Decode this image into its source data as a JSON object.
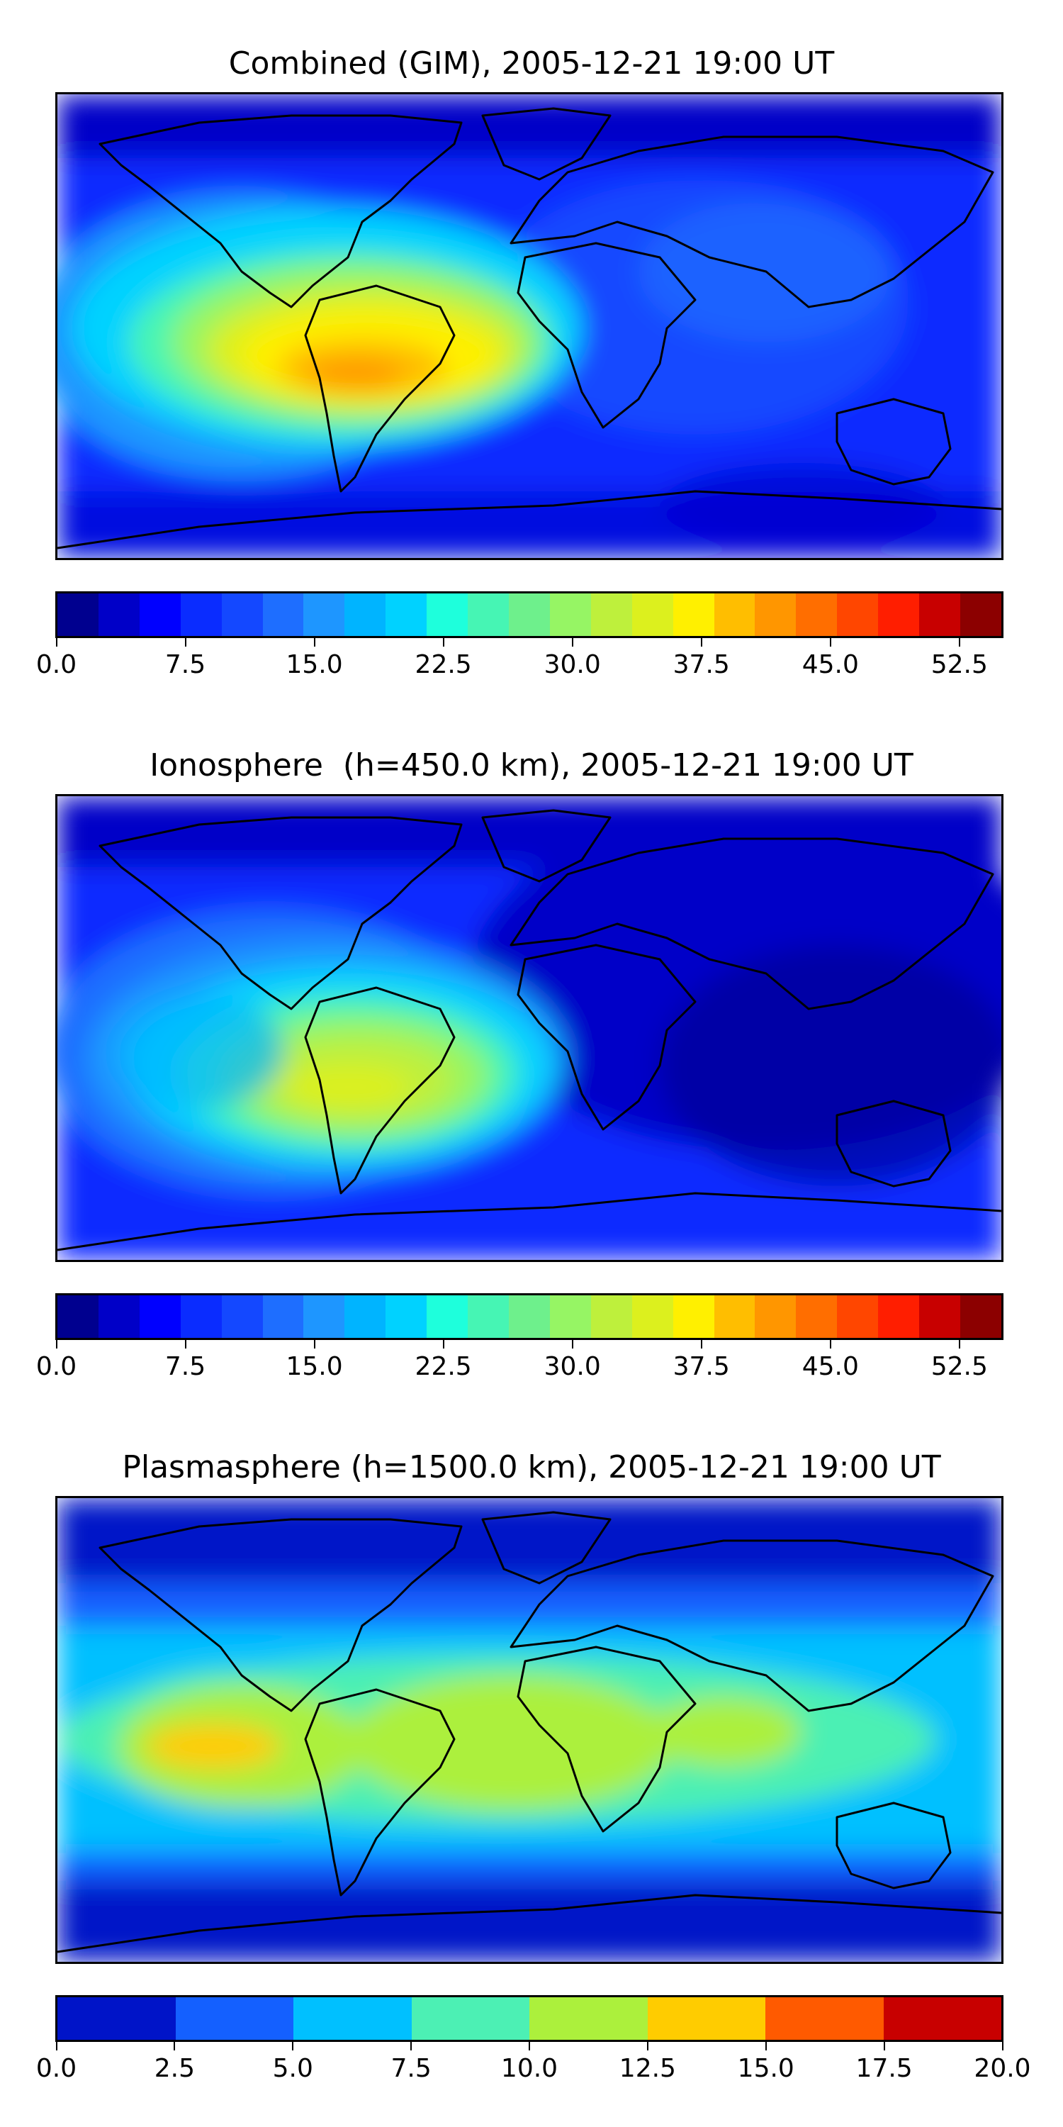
{
  "panels": [
    {
      "title": "Combined (GIM), 2005-12-21 19:00 UT",
      "field": "combined",
      "colorbar": {
        "vmin": 0.0,
        "vmax": 55.0,
        "tick_labels": [
          "0.0",
          "7.5",
          "15.0",
          "22.5",
          "30.0",
          "37.5",
          "45.0",
          "52.5"
        ],
        "tick_values": [
          0.0,
          7.5,
          15.0,
          22.5,
          30.0,
          37.5,
          45.0,
          52.5
        ],
        "colors": [
          "#00008f",
          "#0000c8",
          "#0000ff",
          "#0a2cff",
          "#1448ff",
          "#1e6eff",
          "#1e96ff",
          "#00b4ff",
          "#00d2ff",
          "#1effdc",
          "#46f5b4",
          "#6ef08c",
          "#96f564",
          "#bef03c",
          "#dcf01e",
          "#fff000",
          "#ffbe00",
          "#ff9600",
          "#ff6e00",
          "#ff4600",
          "#ff1e00",
          "#c80000",
          "#8c0000"
        ]
      }
    },
    {
      "title": "Ionosphere  (h=450.0 km), 2005-12-21 19:00 UT",
      "field": "ionosphere",
      "colorbar": {
        "vmin": 0.0,
        "vmax": 55.0,
        "tick_labels": [
          "0.0",
          "7.5",
          "15.0",
          "22.5",
          "30.0",
          "37.5",
          "45.0",
          "52.5"
        ],
        "tick_values": [
          0.0,
          7.5,
          15.0,
          22.5,
          30.0,
          37.5,
          45.0,
          52.5
        ],
        "colors": [
          "#00008f",
          "#0000c8",
          "#0000ff",
          "#0a2cff",
          "#1448ff",
          "#1e6eff",
          "#1e96ff",
          "#00b4ff",
          "#00d2ff",
          "#1effdc",
          "#46f5b4",
          "#6ef08c",
          "#96f564",
          "#bef03c",
          "#dcf01e",
          "#fff000",
          "#ffbe00",
          "#ff9600",
          "#ff6e00",
          "#ff4600",
          "#ff1e00",
          "#c80000",
          "#8c0000"
        ]
      }
    },
    {
      "title": "Plasmasphere (h=1500.0 km), 2005-12-21 19:00 UT",
      "field": "plasmasphere",
      "colorbar": {
        "vmin": 0.0,
        "vmax": 20.0,
        "tick_labels": [
          "0.0",
          "2.5",
          "5.0",
          "7.5",
          "10.0",
          "12.5",
          "15.0",
          "17.5",
          "20.0"
        ],
        "tick_values": [
          0.0,
          2.5,
          5.0,
          7.5,
          10.0,
          12.5,
          15.0,
          17.5,
          20.0
        ],
        "colors": [
          "#0014c8",
          "#1460ff",
          "#00c0ff",
          "#4cf0b4",
          "#acf03c",
          "#ffcc00",
          "#ff5a00",
          "#c80000"
        ]
      }
    }
  ]
}
